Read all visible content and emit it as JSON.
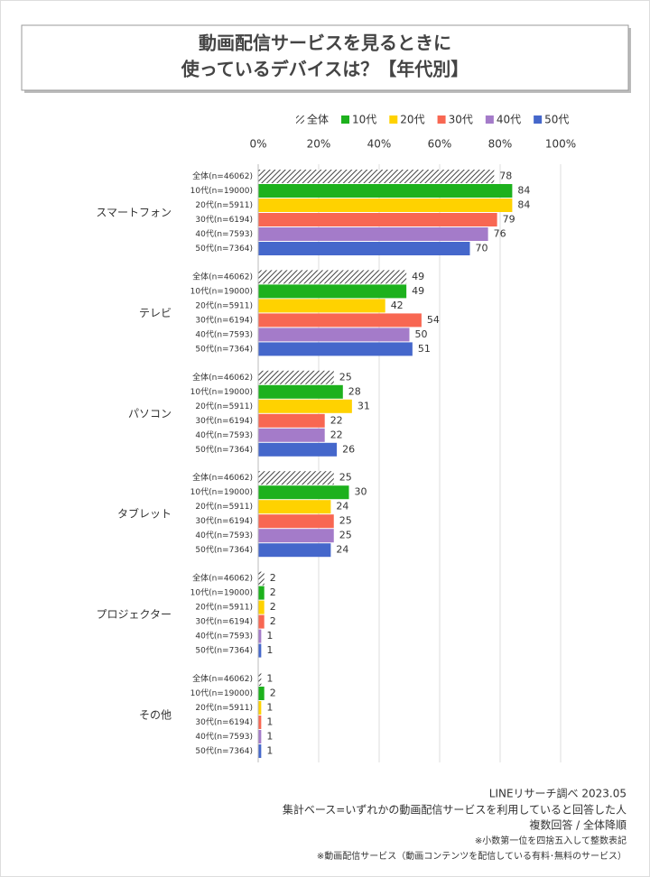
{
  "chart_data": {
    "type": "grouped-hbar",
    "title_lines": [
      "動画配信サービスを見るときに",
      "使っているデバイスは？【年代別】"
    ],
    "categories": [
      "スマートフォン",
      "テレビ",
      "パソコン",
      "タブレット",
      "プロジェクター",
      "その他"
    ],
    "series": [
      {
        "name": "全体",
        "label": "全体(n=46062)",
        "color": "#555555",
        "fill_pattern": "diagonal-hatch",
        "values": [
          78,
          49,
          25,
          25,
          2,
          1
        ]
      },
      {
        "name": "10代",
        "label": "10代(n=19000)",
        "color": "#1db11d",
        "values": [
          84,
          49,
          28,
          30,
          2,
          2
        ]
      },
      {
        "name": "20代",
        "label": "20代(n=5911)",
        "color": "#ffd200",
        "values": [
          84,
          42,
          31,
          24,
          2,
          1
        ]
      },
      {
        "name": "30代",
        "label": "30代(n=6194)",
        "color": "#f86752",
        "values": [
          79,
          54,
          22,
          25,
          2,
          1
        ]
      },
      {
        "name": "40代",
        "label": "40代(n=7593)",
        "color": "#a47bc9",
        "values": [
          76,
          50,
          22,
          25,
          1,
          1
        ]
      },
      {
        "name": "50代",
        "label": "50代(n=7364)",
        "color": "#4567cb",
        "values": [
          70,
          51,
          26,
          24,
          1,
          1
        ]
      }
    ],
    "xlim": [
      0,
      100
    ],
    "xticks": [
      {
        "value": 0,
        "label": "0%"
      },
      {
        "value": 20,
        "label": "20%"
      },
      {
        "value": 40,
        "label": "40%"
      },
      {
        "value": 60,
        "label": "60%"
      },
      {
        "value": 80,
        "label": "80%"
      },
      {
        "value": 100,
        "label": "100%"
      }
    ],
    "grid": true,
    "legend": "top",
    "notes": [
      "LINEリサーチ調べ 2023.05",
      "集計ベース=いずれかの動画配信サービスを利用していると回答した人",
      "複数回答 / 全体降順",
      "※小数第一位を四捨五入して整数表記",
      "※動画配信サービス（動画コンテンツを配信している有料･無料のサービス）"
    ]
  }
}
